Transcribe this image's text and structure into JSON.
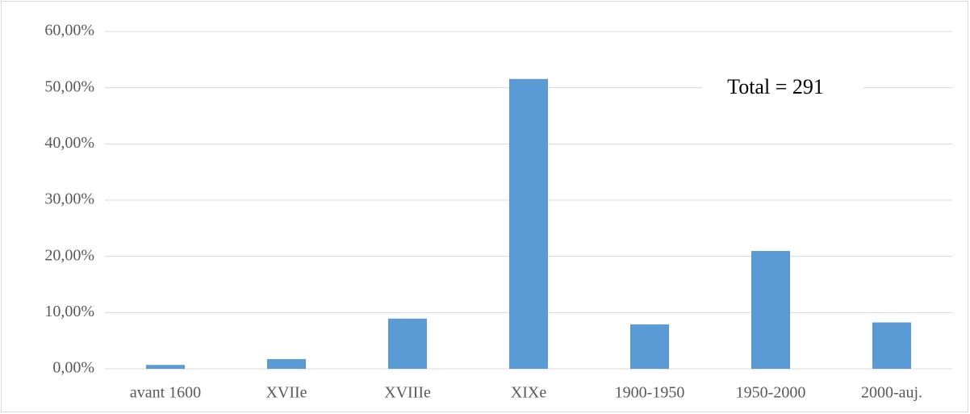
{
  "chart_data": {
    "type": "bar",
    "annotation": "Total = 291",
    "categories": [
      "avant 1600",
      "XVIIe",
      "XVIIIe",
      "XIXe",
      "1900-1950",
      "1950-2000",
      "2000-auj."
    ],
    "values": [
      0.69,
      1.72,
      8.93,
      51.55,
      7.9,
      20.96,
      8.25
    ],
    "color": "#5b9bd5",
    "ylim": [
      0,
      60
    ],
    "yticks": [
      {
        "value": 0,
        "label": "0,00%"
      },
      {
        "value": 10,
        "label": "10,00%"
      },
      {
        "value": 20,
        "label": "20,00%"
      },
      {
        "value": 30,
        "label": "30,00%"
      },
      {
        "value": 40,
        "label": "40,00%"
      },
      {
        "value": 50,
        "label": "50,00%"
      },
      {
        "value": 60,
        "label": "60,00%"
      }
    ],
    "grid": true
  }
}
